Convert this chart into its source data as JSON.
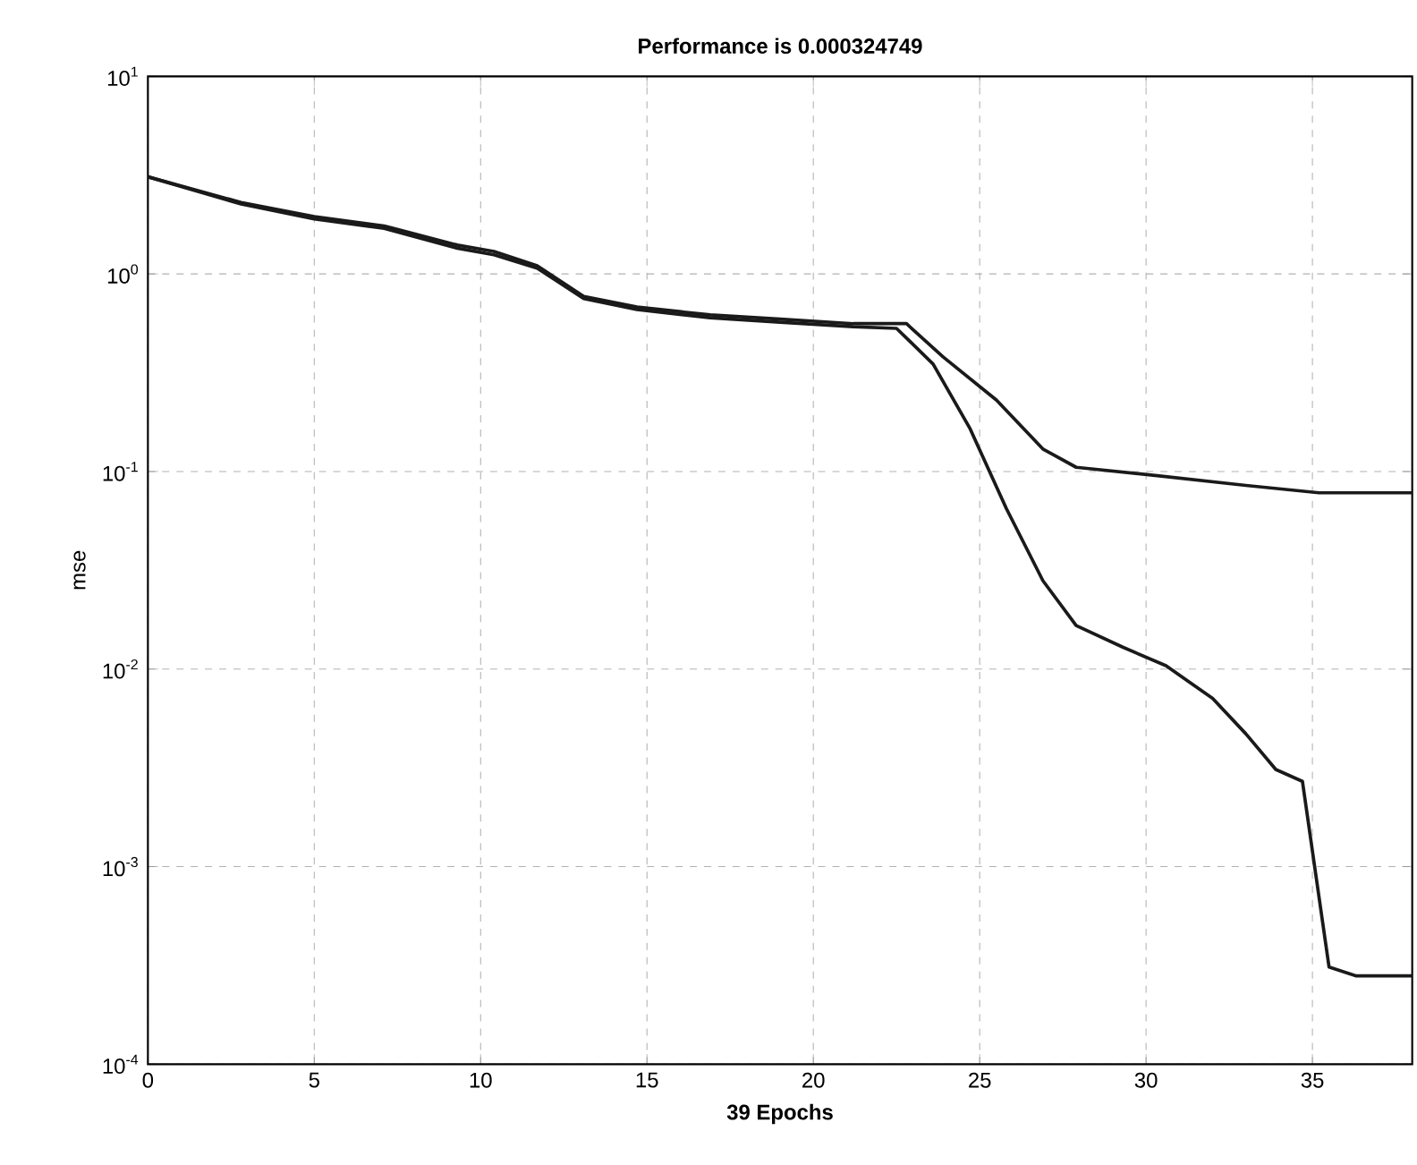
{
  "chart_data": {
    "type": "line",
    "title": "Performance is 0.000324749",
    "xlabel": "39 Epochs",
    "ylabel": "mse",
    "log": "y",
    "grid": true,
    "marker": "none",
    "line_style": "solid",
    "xlim": [
      0,
      38
    ],
    "xticks": [
      0,
      5,
      10,
      15,
      20,
      25,
      30,
      35
    ],
    "ylim": [
      0.0001,
      10
    ],
    "yticks": [
      {
        "value": 0.0001,
        "label": "10$^{-4}$"
      },
      {
        "value": 0.001,
        "label": "10$^{-3}$"
      },
      {
        "value": 0.01,
        "label": "10$^{-2}$"
      },
      {
        "value": 0.1,
        "label": "10$^{-1}$"
      },
      {
        "value": 1,
        "label": "10$^{0}$"
      },
      {
        "value": 10,
        "label": "10$^{1}$"
      }
    ],
    "series": [
      {
        "color": "#1a1a1a",
        "x": [
          0,
          2.8,
          5,
          7.1,
          9.3,
          10.4,
          11.7,
          13.1,
          14.7,
          16.9,
          19,
          21.2,
          22.8,
          23.9,
          25.5,
          26.9,
          27.9,
          30.4,
          33,
          35.2,
          38
        ],
        "values": [
          3.1,
          2.3,
          1.95,
          1.75,
          1.4,
          1.3,
          1.1,
          0.77,
          0.68,
          0.62,
          0.59,
          0.56,
          0.56,
          0.38,
          0.23,
          0.13,
          0.105,
          0.095,
          0.085,
          0.078,
          0.078
        ]
      },
      {
        "color": "#1a1a1a",
        "x": [
          0,
          2.8,
          5,
          7.1,
          9.3,
          10.4,
          11.7,
          13.1,
          14.7,
          16.9,
          19,
          21.2,
          22.5,
          23.6,
          24.7,
          25.8,
          26.9,
          27.9,
          29.3,
          30.6,
          32,
          33,
          33.9,
          34.7,
          35.5,
          36.3,
          38
        ],
        "values": [
          3.1,
          2.26,
          1.9,
          1.7,
          1.35,
          1.25,
          1.07,
          0.75,
          0.66,
          0.6,
          0.57,
          0.54,
          0.53,
          0.35,
          0.166,
          0.065,
          0.028,
          0.0166,
          0.0129,
          0.0104,
          0.0071,
          0.0047,
          0.0031,
          0.0027,
          0.00031,
          0.00028,
          0.00028
        ]
      }
    ]
  }
}
